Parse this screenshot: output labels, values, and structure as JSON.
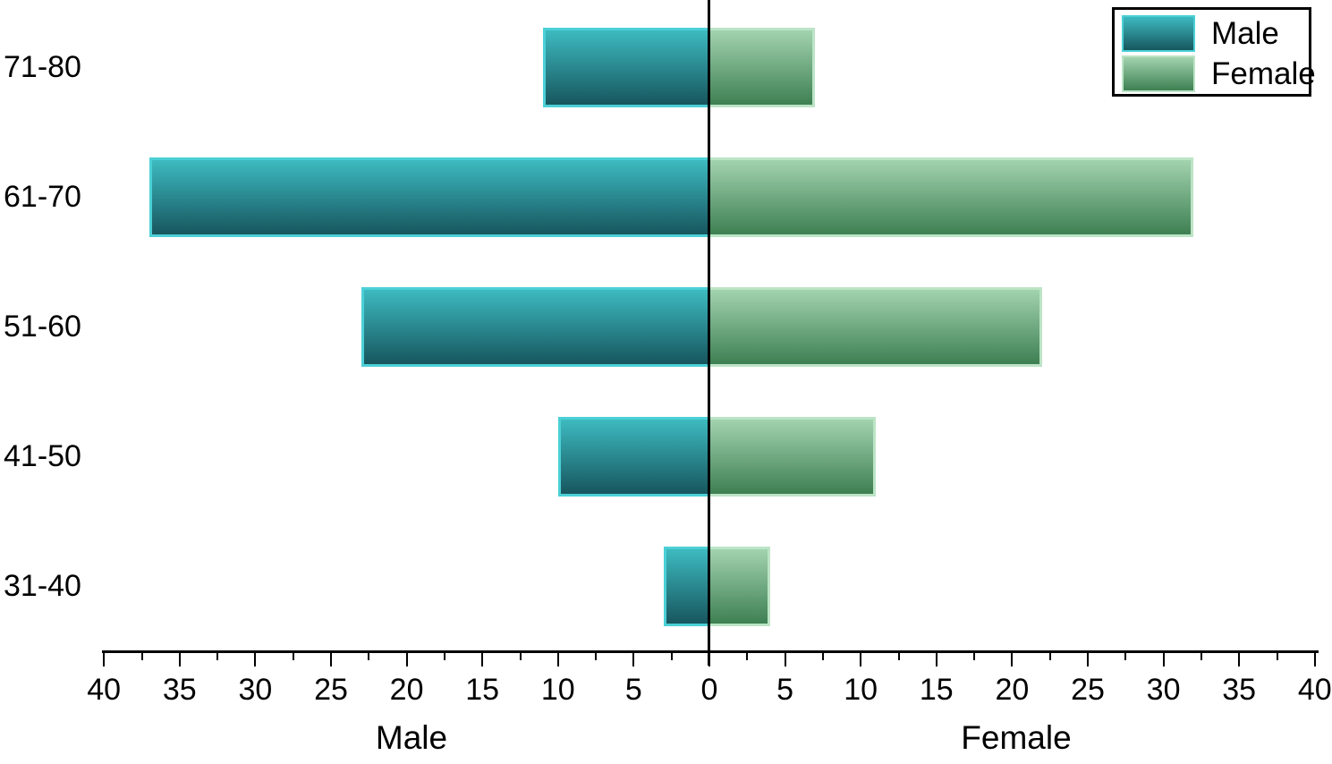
{
  "chart_data": {
    "type": "bar",
    "subtype": "population-pyramid",
    "orientation": "horizontal",
    "categories": [
      "71-80",
      "61-70",
      "51-60",
      "41-50",
      "31-40"
    ],
    "series": [
      {
        "name": "Male",
        "side": "left",
        "values": [
          11,
          37,
          23,
          10,
          3
        ],
        "color_top": "#3DBAC0",
        "color_bottom": "#17565E",
        "border_color": "#4BD0D6"
      },
      {
        "name": "Female",
        "side": "right",
        "values": [
          7,
          32,
          22,
          11,
          4
        ],
        "color_top": "#A2D3AF",
        "color_bottom": "#3E8052",
        "border_color": "#BCE4C6"
      }
    ],
    "xlabel_left": "Male",
    "xlabel_right": "Female",
    "x_max": 40,
    "x_major_step": 5,
    "x_minor_step": 2.5,
    "x_tick_labels": [
      "40",
      "35",
      "30",
      "25",
      "20",
      "15",
      "10",
      "5",
      "0",
      "5",
      "10",
      "15",
      "20",
      "25",
      "30",
      "35",
      "40"
    ],
    "grid": false,
    "legend": {
      "position": "top-right",
      "entries": [
        "Male",
        "Female"
      ]
    },
    "axis_color": "#000000",
    "center_line_color": "#000000",
    "background_color": "#FFFFFF"
  }
}
